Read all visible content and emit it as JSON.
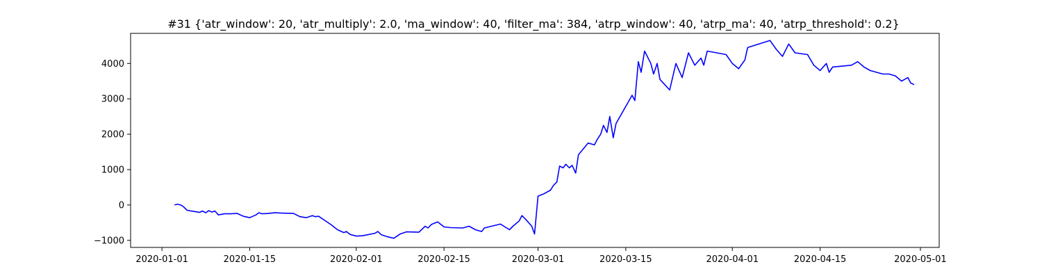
{
  "chart_data": {
    "type": "line",
    "title": "#31 {'atr_window': 20, 'atr_multiply': 2.0, 'ma_window': 40, 'filter_ma': 384, 'atrp_window': 40, 'atrp_ma': 40, 'atrp_threshold': 0.2}",
    "xlabel": "",
    "ylabel": "",
    "x_range": [
      "2019-12-27",
      "2020-05-04"
    ],
    "ylim": [
      -1200,
      4850
    ],
    "grid": false,
    "x_ticks": [
      "2020-01-01",
      "2020-01-15",
      "2020-02-01",
      "2020-02-15",
      "2020-03-01",
      "2020-03-15",
      "2020-04-01",
      "2020-04-15",
      "2020-05-01"
    ],
    "y_ticks": [
      -1000,
      0,
      1000,
      2000,
      3000,
      4000
    ],
    "series": [
      {
        "color": "#0000ff",
        "points": [
          [
            "2020-01-03",
            0
          ],
          [
            "2020-01-03",
            20
          ],
          [
            "2020-01-04",
            0
          ],
          [
            "2020-01-04",
            -50
          ],
          [
            "2020-01-05",
            -150
          ],
          [
            "2020-01-06",
            -180
          ],
          [
            "2020-01-07",
            -210
          ],
          [
            "2020-01-07",
            -170
          ],
          [
            "2020-01-08",
            -220
          ],
          [
            "2020-01-08",
            -160
          ],
          [
            "2020-01-09",
            -200
          ],
          [
            "2020-01-09",
            -170
          ],
          [
            "2020-01-10",
            -280
          ],
          [
            "2020-01-11",
            -250
          ],
          [
            "2020-01-12",
            -250
          ],
          [
            "2020-01-13",
            -240
          ],
          [
            "2020-01-14",
            -320
          ],
          [
            "2020-01-15",
            -360
          ],
          [
            "2020-01-16",
            -280
          ],
          [
            "2020-01-16",
            -220
          ],
          [
            "2020-01-17",
            -250
          ],
          [
            "2020-01-18",
            -240
          ],
          [
            "2020-01-19",
            -220
          ],
          [
            "2020-01-20",
            -230
          ],
          [
            "2020-01-22",
            -240
          ],
          [
            "2020-01-23",
            -330
          ],
          [
            "2020-01-24",
            -360
          ],
          [
            "2020-01-25",
            -300
          ],
          [
            "2020-01-25",
            -330
          ],
          [
            "2020-01-26",
            -320
          ],
          [
            "2020-01-28",
            -560
          ],
          [
            "2020-01-29",
            -700
          ],
          [
            "2020-01-30",
            -780
          ],
          [
            "2020-01-30",
            -750
          ],
          [
            "2020-01-31",
            -830
          ],
          [
            "2020-02-01",
            -880
          ],
          [
            "2020-02-02",
            -870
          ],
          [
            "2020-02-04",
            -800
          ],
          [
            "2020-02-04",
            -750
          ],
          [
            "2020-02-05",
            -840
          ],
          [
            "2020-02-06",
            -900
          ],
          [
            "2020-02-07",
            -940
          ],
          [
            "2020-02-08",
            -820
          ],
          [
            "2020-02-09",
            -760
          ],
          [
            "2020-02-11",
            -770
          ],
          [
            "2020-02-12",
            -600
          ],
          [
            "2020-02-12",
            -650
          ],
          [
            "2020-02-13",
            -550
          ],
          [
            "2020-02-14",
            -480
          ],
          [
            "2020-02-15",
            -620
          ],
          [
            "2020-02-16",
            -640
          ],
          [
            "2020-02-18",
            -650
          ],
          [
            "2020-02-19",
            -600
          ],
          [
            "2020-02-20",
            -700
          ],
          [
            "2020-02-21",
            -750
          ],
          [
            "2020-02-21",
            -650
          ],
          [
            "2020-02-24",
            -540
          ],
          [
            "2020-02-25",
            -650
          ],
          [
            "2020-02-25",
            -700
          ],
          [
            "2020-02-26",
            -600
          ],
          [
            "2020-02-27",
            -450
          ],
          [
            "2020-02-27",
            -300
          ],
          [
            "2020-02-28",
            -400
          ],
          [
            "2020-02-29",
            -600
          ],
          [
            "2020-02-29",
            -820
          ],
          [
            "2020-03-01",
            250
          ],
          [
            "2020-03-02",
            320
          ],
          [
            "2020-03-03",
            420
          ],
          [
            "2020-03-03",
            550
          ],
          [
            "2020-03-04",
            650
          ],
          [
            "2020-03-04",
            1100
          ],
          [
            "2020-03-05",
            1050
          ],
          [
            "2020-03-05",
            1150
          ],
          [
            "2020-03-06",
            1050
          ],
          [
            "2020-03-06",
            1120
          ],
          [
            "2020-03-07",
            900
          ],
          [
            "2020-03-07",
            1420
          ],
          [
            "2020-03-09",
            1750
          ],
          [
            "2020-03-10",
            1700
          ],
          [
            "2020-03-10",
            1850
          ],
          [
            "2020-03-11",
            2000
          ],
          [
            "2020-03-11",
            2250
          ],
          [
            "2020-03-12",
            2050
          ],
          [
            "2020-03-12",
            2500
          ],
          [
            "2020-03-13",
            1900
          ],
          [
            "2020-03-13",
            2300
          ],
          [
            "2020-03-16",
            3100
          ],
          [
            "2020-03-16",
            2950
          ],
          [
            "2020-03-17",
            4050
          ],
          [
            "2020-03-17",
            3750
          ],
          [
            "2020-03-18",
            4350
          ],
          [
            "2020-03-19",
            4000
          ],
          [
            "2020-03-19",
            3700
          ],
          [
            "2020-03-20",
            4000
          ],
          [
            "2020-03-20",
            3550
          ],
          [
            "2020-03-22",
            3250
          ],
          [
            "2020-03-23",
            4000
          ],
          [
            "2020-03-24",
            3600
          ],
          [
            "2020-03-25",
            4300
          ],
          [
            "2020-03-26",
            3950
          ],
          [
            "2020-03-27",
            4150
          ],
          [
            "2020-03-27",
            3950
          ],
          [
            "2020-03-28",
            4350
          ],
          [
            "2020-03-31",
            4250
          ],
          [
            "2020-04-01",
            4000
          ],
          [
            "2020-04-02",
            3850
          ],
          [
            "2020-04-03",
            4100
          ],
          [
            "2020-04-03",
            4450
          ],
          [
            "2020-04-07",
            4650
          ],
          [
            "2020-04-08",
            4400
          ],
          [
            "2020-04-09",
            4200
          ],
          [
            "2020-04-10",
            4550
          ],
          [
            "2020-04-11",
            4300
          ],
          [
            "2020-04-13",
            4250
          ],
          [
            "2020-04-14",
            3950
          ],
          [
            "2020-04-15",
            3800
          ],
          [
            "2020-04-16",
            4000
          ],
          [
            "2020-04-16",
            3750
          ],
          [
            "2020-04-17",
            3900
          ],
          [
            "2020-04-20",
            3950
          ],
          [
            "2020-04-21",
            4050
          ],
          [
            "2020-04-22",
            3900
          ],
          [
            "2020-04-23",
            3800
          ],
          [
            "2020-04-24",
            3750
          ],
          [
            "2020-04-25",
            3700
          ],
          [
            "2020-04-26",
            3700
          ],
          [
            "2020-04-27",
            3650
          ],
          [
            "2020-04-28",
            3500
          ],
          [
            "2020-04-29",
            3600
          ],
          [
            "2020-04-29",
            3450
          ],
          [
            "2020-04-30",
            3400
          ]
        ]
      }
    ]
  }
}
